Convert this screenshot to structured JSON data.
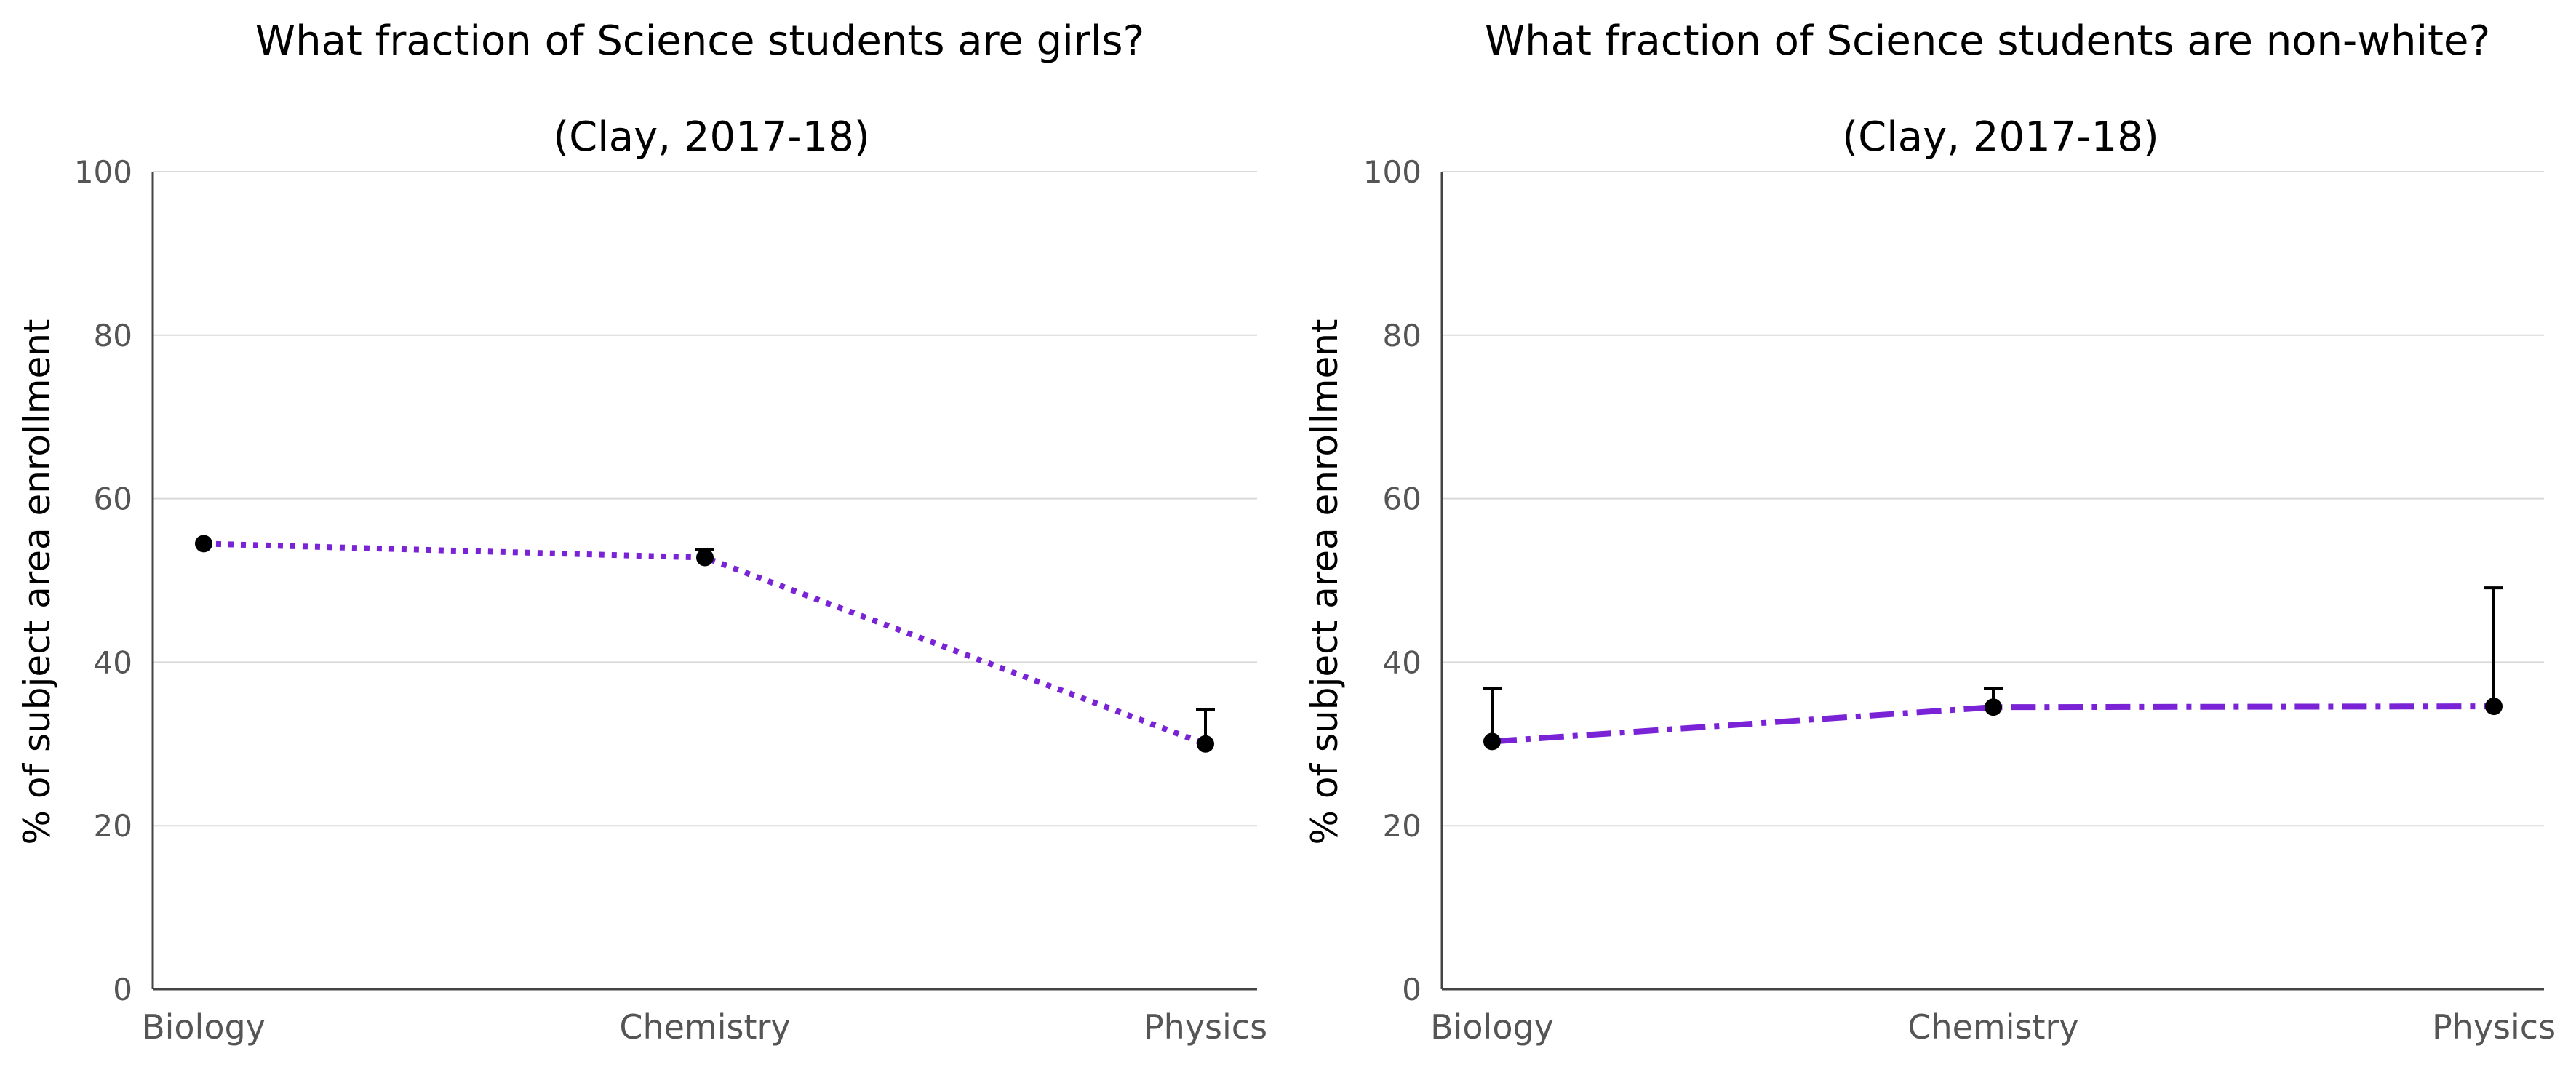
{
  "chart_data": [
    {
      "type": "line",
      "title": "What fraction of Science students are girls?",
      "subtitle": "(Clay, 2017-18)",
      "xlabel": "",
      "ylabel": "% of subject area enrollment",
      "categories": [
        "Biology",
        "Chemistry",
        "Physics"
      ],
      "ylim": [
        0,
        100
      ],
      "yticks": [
        0,
        20,
        40,
        60,
        80,
        100
      ],
      "grid": true,
      "line_style": "dotted",
      "line_color": "#7a22d6",
      "marker_color": "#000000",
      "series": [
        {
          "values": [
            54.5,
            52.8,
            30.0
          ],
          "error_upper": [
            54.5,
            53.8,
            34.2
          ]
        }
      ]
    },
    {
      "type": "line",
      "title": "What fraction of Science students are non-white?",
      "subtitle": "(Clay, 2017-18)",
      "xlabel": "",
      "ylabel": "% of subject area enrollment",
      "categories": [
        "Biology",
        "Chemistry",
        "Physics"
      ],
      "ylim": [
        0,
        100
      ],
      "yticks": [
        0,
        20,
        40,
        60,
        80,
        100
      ],
      "grid": true,
      "line_style": "dashdot",
      "line_color": "#7a22d6",
      "marker_color": "#000000",
      "series": [
        {
          "values": [
            30.3,
            34.5,
            34.6
          ],
          "error_upper": [
            36.8,
            36.8,
            49.1
          ]
        }
      ]
    }
  ]
}
